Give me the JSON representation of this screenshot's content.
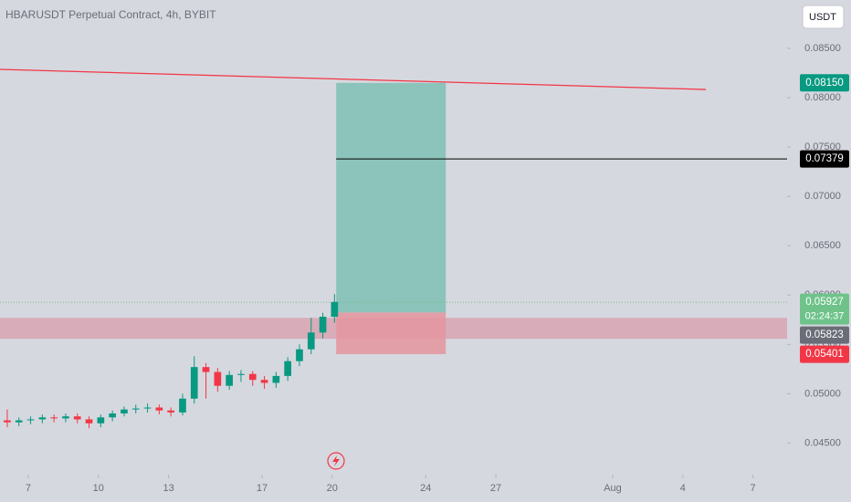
{
  "chart_data": {
    "type": "candlestick",
    "title": "HBARUSDT Perpetual Contract, 4h, BYBIT",
    "currency_button": "USDT",
    "up_color": "#089981",
    "down_color": "#f23645",
    "xlim": [
      5.79,
      39.46
    ],
    "ylim": [
      0.0418,
      0.0899
    ],
    "xticks": [
      7,
      10,
      13,
      17,
      20,
      24,
      27,
      {
        "value": 32,
        "label": "Aug"
      },
      {
        "value": 35,
        "label": "4"
      },
      {
        "value": 38,
        "label": "7"
      }
    ],
    "yticks": [
      {
        "value": 0.045,
        "label": "0.04500"
      },
      {
        "value": 0.05,
        "label": "0.05000"
      },
      {
        "value": 0.055,
        "label": "0.05500"
      },
      {
        "value": 0.06,
        "label": "0.06000"
      },
      {
        "value": 0.065,
        "label": "0.06500"
      },
      {
        "value": 0.07,
        "label": "0.07000"
      },
      {
        "value": 0.075,
        "label": "0.07500"
      },
      {
        "value": 0.08,
        "label": "0.08000"
      },
      {
        "value": 0.085,
        "label": "0.08500"
      }
    ],
    "candles": {
      "x": [
        6.1,
        6.6,
        7.1,
        7.6,
        8.1,
        8.6,
        9.1,
        9.6,
        10.1,
        10.6,
        11.1,
        11.6,
        12.1,
        12.6,
        13.1,
        13.6,
        14.1,
        14.6,
        15.1,
        15.6,
        16.1,
        16.6,
        17.1,
        17.6,
        18.1,
        18.6,
        19.1,
        19.6,
        20.1
      ],
      "open": [
        0.0473,
        0.0471,
        0.0473,
        0.0474,
        0.0476,
        0.0475,
        0.0477,
        0.0474,
        0.047,
        0.0476,
        0.048,
        0.0484,
        0.0485,
        0.0486,
        0.0483,
        0.0481,
        0.0495,
        0.0527,
        0.0522,
        0.0508,
        0.0519,
        0.052,
        0.0514,
        0.0511,
        0.0518,
        0.0533,
        0.0545,
        0.0562,
        0.0578
      ],
      "high": [
        0.0484,
        0.0476,
        0.0477,
        0.0479,
        0.0479,
        0.048,
        0.048,
        0.0477,
        0.0479,
        0.0483,
        0.0487,
        0.0489,
        0.049,
        0.0489,
        0.0486,
        0.05,
        0.0538,
        0.0531,
        0.0526,
        0.0523,
        0.0524,
        0.0523,
        0.0518,
        0.0522,
        0.0537,
        0.055,
        0.0577,
        0.0582,
        0.0601
      ],
      "low": [
        0.0466,
        0.0467,
        0.0469,
        0.047,
        0.0471,
        0.0471,
        0.047,
        0.0465,
        0.0466,
        0.0472,
        0.0477,
        0.048,
        0.0481,
        0.0479,
        0.0477,
        0.0478,
        0.049,
        0.0495,
        0.0502,
        0.0504,
        0.0512,
        0.0508,
        0.0505,
        0.0506,
        0.0513,
        0.0528,
        0.054,
        0.0556,
        0.0572
      ],
      "close": [
        0.0471,
        0.0473,
        0.0474,
        0.0476,
        0.0475,
        0.0477,
        0.0474,
        0.047,
        0.0476,
        0.048,
        0.0484,
        0.0485,
        0.0486,
        0.0483,
        0.0481,
        0.0495,
        0.0527,
        0.0522,
        0.0508,
        0.0519,
        0.052,
        0.0514,
        0.0511,
        0.0518,
        0.0533,
        0.0545,
        0.0562,
        0.0578,
        0.0593
      ]
    },
    "trend_line": {
      "x": [
        5.79,
        35.98
      ],
      "y": [
        0.08287,
        0.08083
      ],
      "color": "#f23645"
    },
    "zone": {
      "ylim": [
        0.05556,
        0.05769
      ],
      "color": "#d88fa0"
    },
    "position": {
      "x": [
        20.17,
        24.86
      ],
      "entry": 0.05823,
      "target": 0.0815,
      "stop": 0.05401,
      "profit_color": "#7fbfb5",
      "loss_color": "#e5959f"
    },
    "target_line": {
      "value": 0.07379,
      "x": 20.17
    },
    "last_price": 0.05927,
    "price_labels": [
      {
        "value": 0.0815,
        "label": "0.08150",
        "color": "#089981"
      },
      {
        "value": 0.07379,
        "label": "0.07379",
        "color": "#000000"
      },
      {
        "value": 0.05927,
        "label": "0.05927",
        "color": "#6fc38a",
        "countdown": "02:24:37"
      },
      {
        "value": 0.05823,
        "label": "0.05823",
        "color": "#6a6d78"
      },
      {
        "value": 0.05401,
        "label": "0.05401",
        "color": "#f23645"
      }
    ]
  }
}
